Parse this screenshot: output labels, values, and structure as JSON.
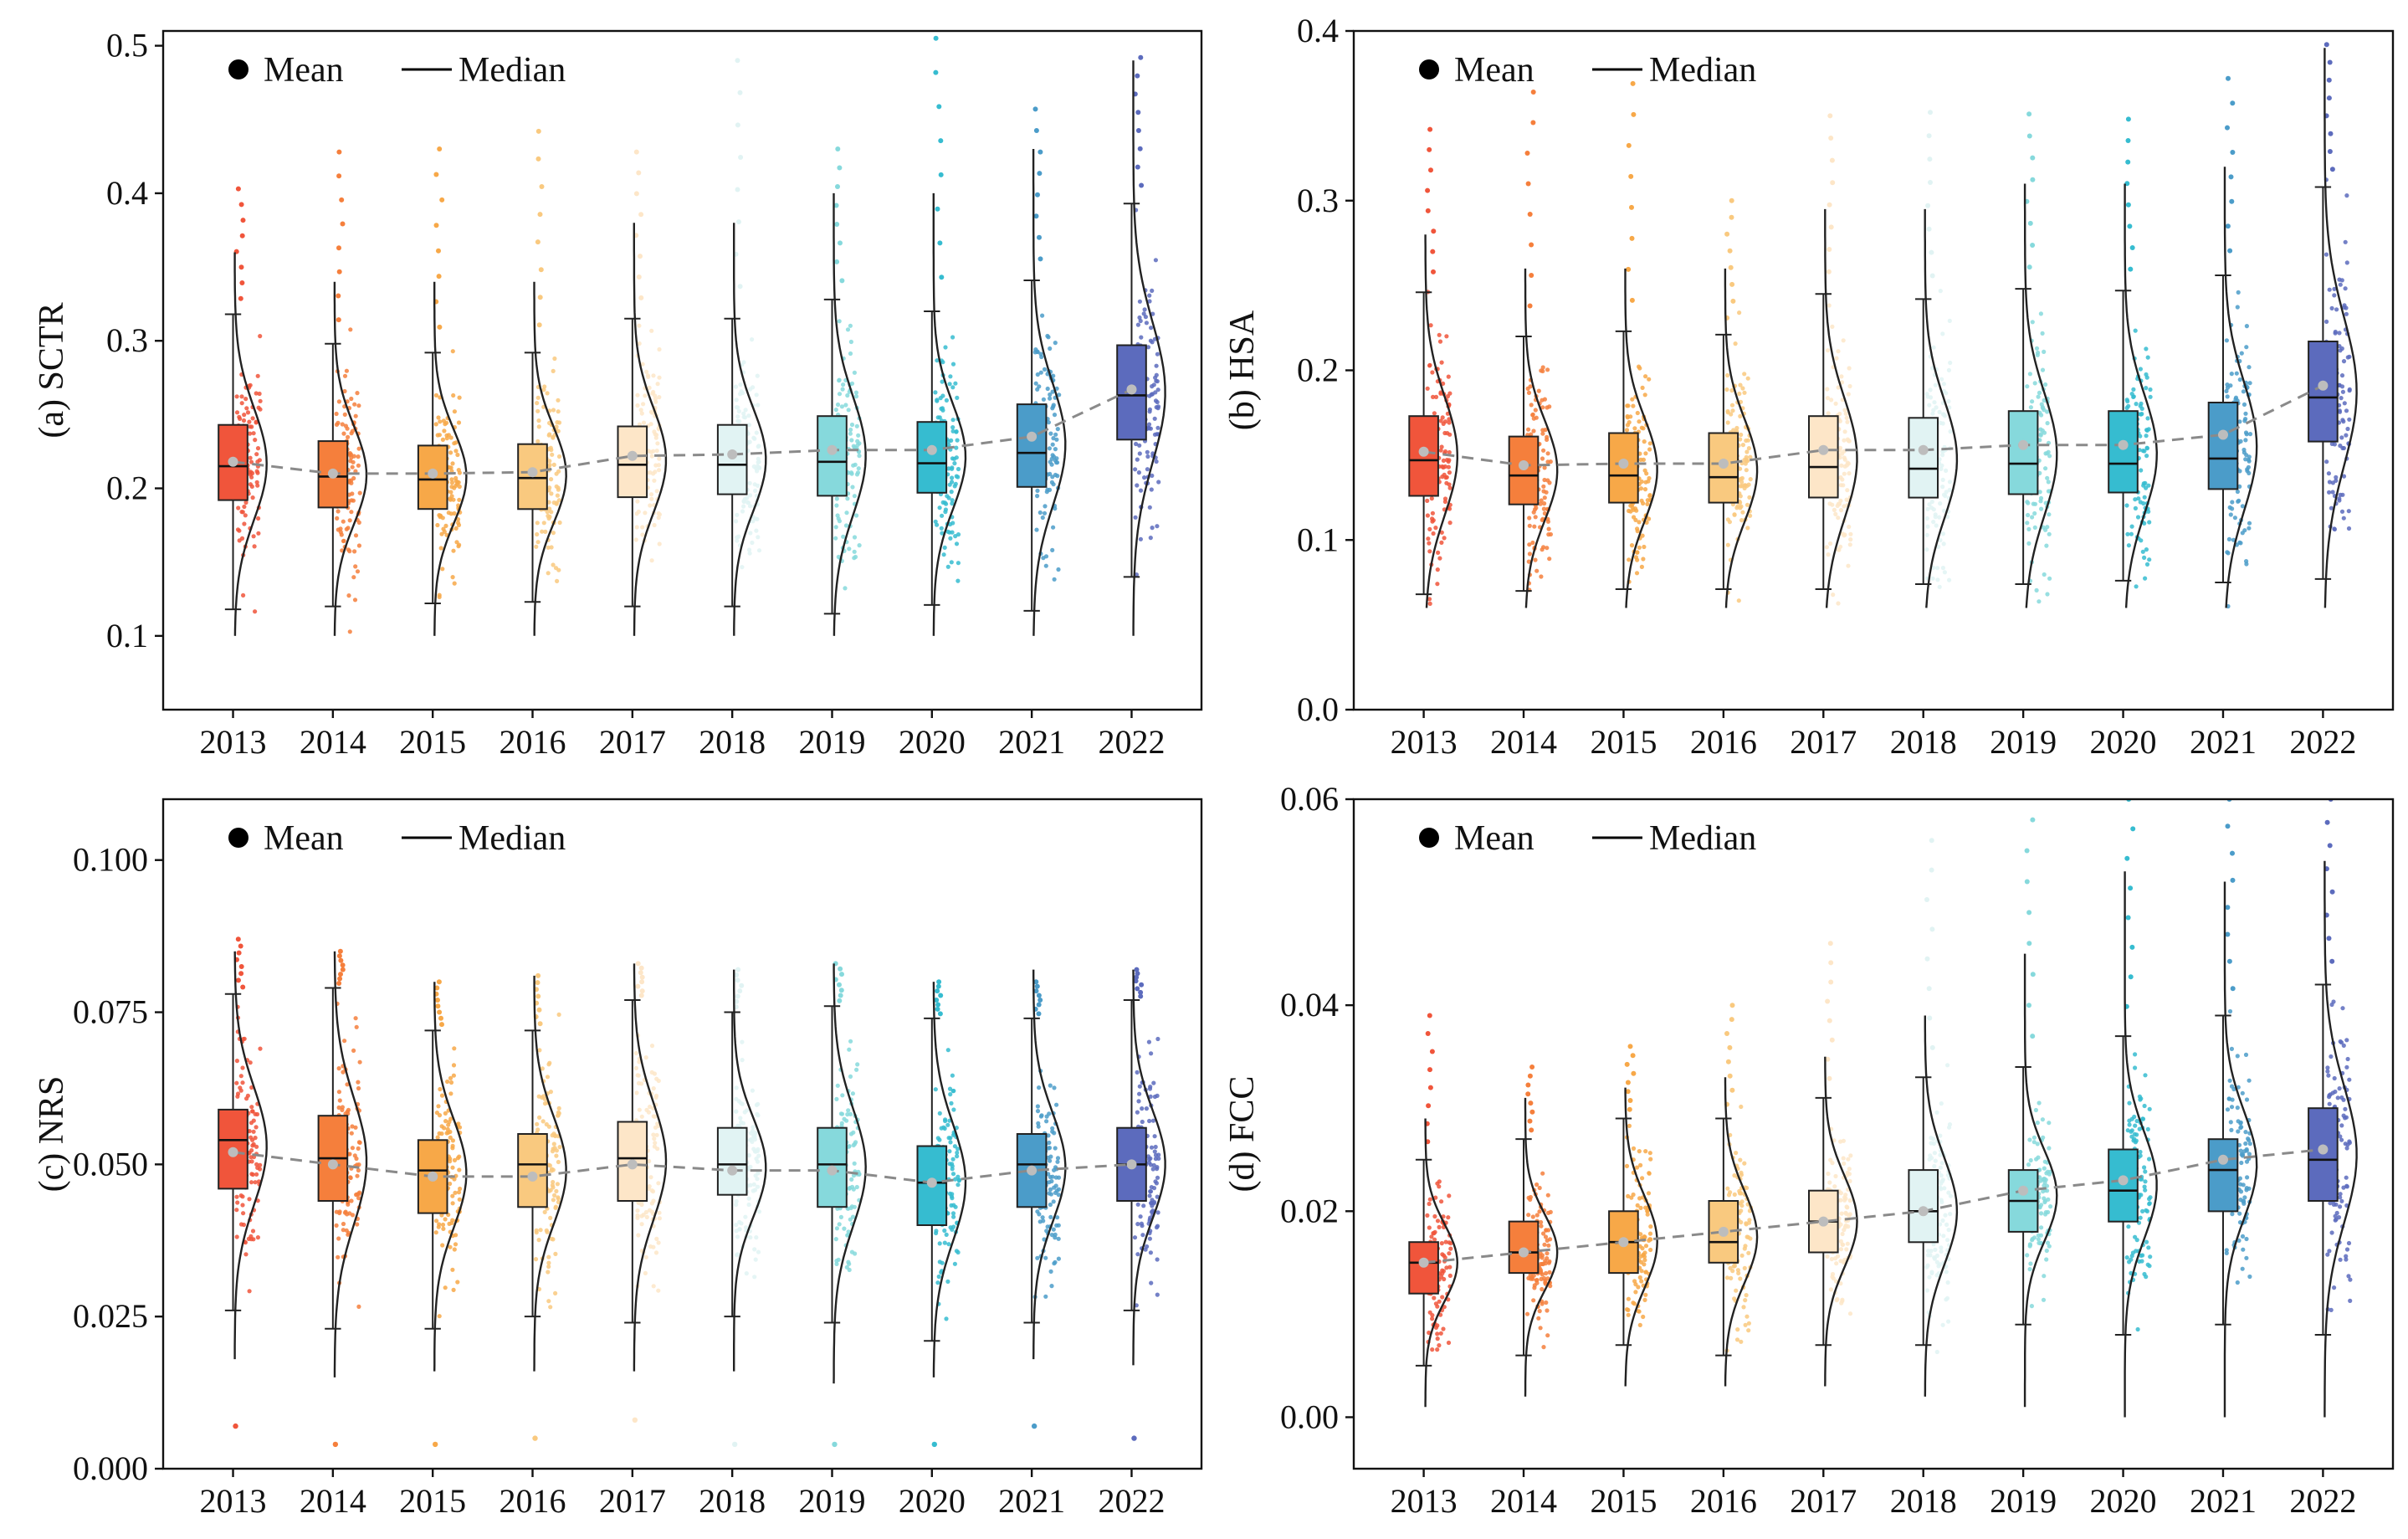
{
  "colors": [
    "#f0553b",
    "#f57f3c",
    "#f7a848",
    "#f9c97f",
    "#fde6c8",
    "#e1f3f3",
    "#86d9dc",
    "#36bcd0",
    "#4b9cc9",
    "#5c6bbd"
  ],
  "legend": {
    "mean_label": "Mean",
    "median_label": "Median"
  },
  "chart_data": [
    {
      "id": "a",
      "type": "box-raincloud",
      "ylabel": "(a) SCTR",
      "categories": [
        "2013",
        "2014",
        "2015",
        "2016",
        "2017",
        "2018",
        "2019",
        "2020",
        "2021",
        "2022"
      ],
      "ylim": [
        0.05,
        0.51
      ],
      "yticks": [
        0.1,
        0.2,
        0.3,
        0.4,
        0.5
      ],
      "ytick_labels": [
        "0.1",
        "0.2",
        "0.3",
        "0.4",
        "0.5"
      ],
      "boxes": [
        {
          "year": "2013",
          "wlo": 0.118,
          "q1": 0.192,
          "median": 0.215,
          "q3": 0.243,
          "whi": 0.318,
          "mean": 0.218,
          "dmin": 0.1,
          "dmax": 0.36,
          "out_max": 0.403
        },
        {
          "year": "2014",
          "wlo": 0.12,
          "q1": 0.187,
          "median": 0.208,
          "q3": 0.232,
          "whi": 0.298,
          "mean": 0.21,
          "dmin": 0.1,
          "dmax": 0.34,
          "out_max": 0.428
        },
        {
          "year": "2015",
          "wlo": 0.122,
          "q1": 0.186,
          "median": 0.206,
          "q3": 0.229,
          "whi": 0.292,
          "mean": 0.21,
          "dmin": 0.1,
          "dmax": 0.34,
          "out_max": 0.43
        },
        {
          "year": "2016",
          "wlo": 0.123,
          "q1": 0.186,
          "median": 0.207,
          "q3": 0.23,
          "whi": 0.292,
          "mean": 0.211,
          "dmin": 0.1,
          "dmax": 0.34,
          "out_max": 0.442
        },
        {
          "year": "2017",
          "wlo": 0.12,
          "q1": 0.194,
          "median": 0.216,
          "q3": 0.242,
          "whi": 0.315,
          "mean": 0.222,
          "dmin": 0.1,
          "dmax": 0.38,
          "out_max": 0.428
        },
        {
          "year": "2018",
          "wlo": 0.12,
          "q1": 0.196,
          "median": 0.216,
          "q3": 0.243,
          "whi": 0.315,
          "mean": 0.223,
          "dmin": 0.1,
          "dmax": 0.38,
          "out_max": 0.49
        },
        {
          "year": "2019",
          "wlo": 0.115,
          "q1": 0.195,
          "median": 0.218,
          "q3": 0.249,
          "whi": 0.328,
          "mean": 0.226,
          "dmin": 0.1,
          "dmax": 0.4,
          "out_max": 0.43
        },
        {
          "year": "2020",
          "wlo": 0.121,
          "q1": 0.197,
          "median": 0.217,
          "q3": 0.245,
          "whi": 0.32,
          "mean": 0.226,
          "dmin": 0.1,
          "dmax": 0.4,
          "out_max": 0.505
        },
        {
          "year": "2021",
          "wlo": 0.117,
          "q1": 0.201,
          "median": 0.224,
          "q3": 0.257,
          "whi": 0.341,
          "mean": 0.235,
          "dmin": 0.1,
          "dmax": 0.43,
          "out_max": 0.457
        },
        {
          "year": "2022",
          "wlo": 0.14,
          "q1": 0.233,
          "median": 0.263,
          "q3": 0.297,
          "whi": 0.393,
          "mean": 0.267,
          "dmin": 0.1,
          "dmax": 0.49,
          "out_max": 0.492
        }
      ]
    },
    {
      "id": "b",
      "type": "box-raincloud",
      "ylabel": "(b) HSA",
      "categories": [
        "2013",
        "2014",
        "2015",
        "2016",
        "2017",
        "2018",
        "2019",
        "2020",
        "2021",
        "2022"
      ],
      "ylim": [
        0.0,
        0.4
      ],
      "yticks": [
        0.0,
        0.1,
        0.2,
        0.3,
        0.4
      ],
      "ytick_labels": [
        "0.0",
        "0.1",
        "0.2",
        "0.3",
        "0.4"
      ],
      "boxes": [
        {
          "year": "2013",
          "wlo": 0.068,
          "q1": 0.126,
          "median": 0.147,
          "q3": 0.173,
          "whi": 0.246,
          "mean": 0.152,
          "dmin": 0.06,
          "dmax": 0.28,
          "out_max": 0.342
        },
        {
          "year": "2014",
          "wlo": 0.07,
          "q1": 0.121,
          "median": 0.138,
          "q3": 0.161,
          "whi": 0.22,
          "mean": 0.144,
          "dmin": 0.06,
          "dmax": 0.26,
          "out_max": 0.364
        },
        {
          "year": "2015",
          "wlo": 0.071,
          "q1": 0.122,
          "median": 0.138,
          "q3": 0.163,
          "whi": 0.223,
          "mean": 0.145,
          "dmin": 0.06,
          "dmax": 0.26,
          "out_max": 0.369
        },
        {
          "year": "2016",
          "wlo": 0.071,
          "q1": 0.122,
          "median": 0.137,
          "q3": 0.163,
          "whi": 0.221,
          "mean": 0.145,
          "dmin": 0.06,
          "dmax": 0.26,
          "out_max": 0.3
        },
        {
          "year": "2017",
          "wlo": 0.071,
          "q1": 0.125,
          "median": 0.143,
          "q3": 0.173,
          "whi": 0.245,
          "mean": 0.153,
          "dmin": 0.06,
          "dmax": 0.295,
          "out_max": 0.35
        },
        {
          "year": "2018",
          "wlo": 0.074,
          "q1": 0.125,
          "median": 0.142,
          "q3": 0.172,
          "whi": 0.242,
          "mean": 0.153,
          "dmin": 0.06,
          "dmax": 0.295,
          "out_max": 0.352
        },
        {
          "year": "2019",
          "wlo": 0.074,
          "q1": 0.127,
          "median": 0.145,
          "q3": 0.176,
          "whi": 0.248,
          "mean": 0.156,
          "dmin": 0.06,
          "dmax": 0.31,
          "out_max": 0.351
        },
        {
          "year": "2020",
          "wlo": 0.076,
          "q1": 0.128,
          "median": 0.145,
          "q3": 0.176,
          "whi": 0.247,
          "mean": 0.156,
          "dmin": 0.06,
          "dmax": 0.31,
          "out_max": 0.348
        },
        {
          "year": "2021",
          "wlo": 0.075,
          "q1": 0.13,
          "median": 0.148,
          "q3": 0.181,
          "whi": 0.256,
          "mean": 0.162,
          "dmin": 0.06,
          "dmax": 0.32,
          "out_max": 0.372
        },
        {
          "year": "2022",
          "wlo": 0.077,
          "q1": 0.158,
          "median": 0.184,
          "q3": 0.217,
          "whi": 0.308,
          "mean": 0.191,
          "dmin": 0.06,
          "dmax": 0.39,
          "out_max": 0.392
        }
      ]
    },
    {
      "id": "c",
      "type": "box-raincloud",
      "ylabel": "(c) NRS",
      "categories": [
        "2013",
        "2014",
        "2015",
        "2016",
        "2017",
        "2018",
        "2019",
        "2020",
        "2021",
        "2022"
      ],
      "ylim": [
        0.0,
        0.11
      ],
      "yticks": [
        0.0,
        0.025,
        0.05,
        0.075,
        0.1
      ],
      "ytick_labels": [
        "0.000",
        "0.025",
        "0.050",
        "0.075",
        "0.100"
      ],
      "boxes": [
        {
          "year": "2013",
          "wlo": 0.026,
          "q1": 0.046,
          "median": 0.054,
          "q3": 0.059,
          "whi": 0.078,
          "mean": 0.052,
          "dmin": 0.018,
          "dmax": 0.085,
          "out_max": 0.087,
          "out_min": 0.007
        },
        {
          "year": "2014",
          "wlo": 0.023,
          "q1": 0.044,
          "median": 0.051,
          "q3": 0.058,
          "whi": 0.079,
          "mean": 0.05,
          "dmin": 0.015,
          "dmax": 0.085,
          "out_max": 0.085,
          "out_min": 0.004
        },
        {
          "year": "2015",
          "wlo": 0.023,
          "q1": 0.042,
          "median": 0.049,
          "q3": 0.054,
          "whi": 0.072,
          "mean": 0.048,
          "dmin": 0.016,
          "dmax": 0.08,
          "out_max": 0.08,
          "out_min": 0.004
        },
        {
          "year": "2016",
          "wlo": 0.025,
          "q1": 0.043,
          "median": 0.05,
          "q3": 0.055,
          "whi": 0.072,
          "mean": 0.048,
          "dmin": 0.016,
          "dmax": 0.081,
          "out_max": 0.081,
          "out_min": 0.005
        },
        {
          "year": "2017",
          "wlo": 0.024,
          "q1": 0.044,
          "median": 0.051,
          "q3": 0.057,
          "whi": 0.077,
          "mean": 0.05,
          "dmin": 0.016,
          "dmax": 0.083,
          "out_max": 0.083,
          "out_min": 0.008
        },
        {
          "year": "2018",
          "wlo": 0.025,
          "q1": 0.045,
          "median": 0.05,
          "q3": 0.056,
          "whi": 0.075,
          "mean": 0.049,
          "dmin": 0.016,
          "dmax": 0.082,
          "out_max": 0.082,
          "out_min": 0.004
        },
        {
          "year": "2019",
          "wlo": 0.024,
          "q1": 0.043,
          "median": 0.05,
          "q3": 0.056,
          "whi": 0.076,
          "mean": 0.049,
          "dmin": 0.014,
          "dmax": 0.083,
          "out_max": 0.083,
          "out_min": 0.004
        },
        {
          "year": "2020",
          "wlo": 0.021,
          "q1": 0.04,
          "median": 0.047,
          "q3": 0.053,
          "whi": 0.074,
          "mean": 0.047,
          "dmin": 0.015,
          "dmax": 0.08,
          "out_max": 0.08,
          "out_min": 0.004
        },
        {
          "year": "2021",
          "wlo": 0.024,
          "q1": 0.043,
          "median": 0.05,
          "q3": 0.055,
          "whi": 0.074,
          "mean": 0.049,
          "dmin": 0.018,
          "dmax": 0.082,
          "out_max": 0.08,
          "out_min": 0.007
        },
        {
          "year": "2022",
          "wlo": 0.026,
          "q1": 0.044,
          "median": 0.05,
          "q3": 0.056,
          "whi": 0.077,
          "mean": 0.05,
          "dmin": 0.017,
          "dmax": 0.082,
          "out_max": 0.082,
          "out_min": 0.005
        }
      ]
    },
    {
      "id": "d",
      "type": "box-raincloud",
      "ylabel": "(d) FCC",
      "categories": [
        "2013",
        "2014",
        "2015",
        "2016",
        "2017",
        "2018",
        "2019",
        "2020",
        "2021",
        "2022"
      ],
      "ylim": [
        -0.005,
        0.06
      ],
      "yticks": [
        0.0,
        0.02,
        0.04,
        0.06
      ],
      "ytick_labels": [
        "0.00",
        "0.02",
        "0.04",
        "0.06"
      ],
      "boxes": [
        {
          "year": "2013",
          "wlo": 0.005,
          "q1": 0.012,
          "median": 0.015,
          "q3": 0.017,
          "whi": 0.025,
          "mean": 0.015,
          "dmin": 0.001,
          "dmax": 0.029,
          "out_max": 0.039
        },
        {
          "year": "2014",
          "wlo": 0.006,
          "q1": 0.014,
          "median": 0.016,
          "q3": 0.019,
          "whi": 0.027,
          "mean": 0.016,
          "dmin": 0.002,
          "dmax": 0.031,
          "out_max": 0.034
        },
        {
          "year": "2015",
          "wlo": 0.007,
          "q1": 0.014,
          "median": 0.017,
          "q3": 0.02,
          "whi": 0.029,
          "mean": 0.017,
          "dmin": 0.003,
          "dmax": 0.032,
          "out_max": 0.036
        },
        {
          "year": "2016",
          "wlo": 0.006,
          "q1": 0.015,
          "median": 0.017,
          "q3": 0.021,
          "whi": 0.029,
          "mean": 0.018,
          "dmin": 0.003,
          "dmax": 0.033,
          "out_max": 0.04
        },
        {
          "year": "2017",
          "wlo": 0.007,
          "q1": 0.016,
          "median": 0.019,
          "q3": 0.022,
          "whi": 0.031,
          "mean": 0.019,
          "dmin": 0.003,
          "dmax": 0.035,
          "out_max": 0.046
        },
        {
          "year": "2018",
          "wlo": 0.007,
          "q1": 0.017,
          "median": 0.02,
          "q3": 0.024,
          "whi": 0.033,
          "mean": 0.02,
          "dmin": 0.002,
          "dmax": 0.039,
          "out_max": 0.056
        },
        {
          "year": "2019",
          "wlo": 0.009,
          "q1": 0.018,
          "median": 0.021,
          "q3": 0.024,
          "whi": 0.034,
          "mean": 0.022,
          "dmin": 0.001,
          "dmax": 0.045,
          "out_max": 0.058
        },
        {
          "year": "2020",
          "wlo": 0.008,
          "q1": 0.019,
          "median": 0.022,
          "q3": 0.026,
          "whi": 0.037,
          "mean": 0.023,
          "dmin": 0.0,
          "dmax": 0.053,
          "out_max": 0.06
        },
        {
          "year": "2021",
          "wlo": 0.009,
          "q1": 0.02,
          "median": 0.024,
          "q3": 0.027,
          "whi": 0.039,
          "mean": 0.025,
          "dmin": 0.0,
          "dmax": 0.052,
          "out_max": 0.06
        },
        {
          "year": "2022",
          "wlo": 0.008,
          "q1": 0.021,
          "median": 0.025,
          "q3": 0.03,
          "whi": 0.042,
          "mean": 0.026,
          "dmin": 0.0,
          "dmax": 0.054,
          "out_max": 0.06
        }
      ]
    }
  ]
}
